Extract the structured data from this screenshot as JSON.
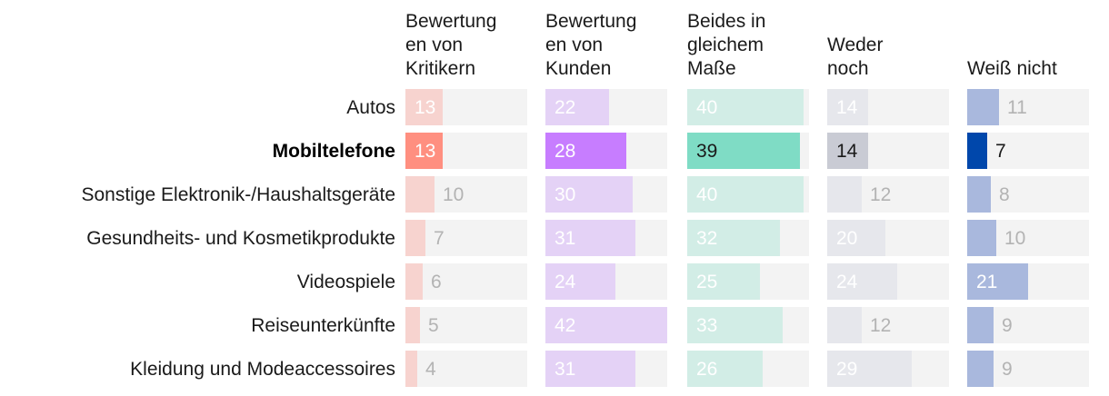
{
  "chart_data": {
    "type": "bar",
    "columns": [
      {
        "name_lines": [
          "Bewertung",
          "en von",
          "Kritikern"
        ],
        "color": "#ff8f80",
        "muted_color": "#f7d3cf"
      },
      {
        "name_lines": [
          "Bewertung",
          "en von",
          "Kunden"
        ],
        "color": "#c77dff",
        "muted_color": "#e4d2f6"
      },
      {
        "name_lines": [
          "Beides in",
          "gleichem",
          "Maße"
        ],
        "color": "#7fdcc5",
        "muted_color": "#d2ede6"
      },
      {
        "name_lines": [
          "Weder",
          "noch"
        ],
        "color": "#c9cbd4",
        "muted_color": "#e6e7ec"
      },
      {
        "name_lines": [
          "Weiß nicht"
        ],
        "color": "#0047ab",
        "muted_color": "#a9b8dd"
      }
    ],
    "categories": [
      "Autos",
      "Mobiltelefone",
      "Sonstige Elektronik-/Haushaltsgeräte",
      "Gesundheits- und Kosmetikprodukte",
      "Videospiele",
      "Reiseunterkünfte",
      "Kleidung und Modeaccessoires"
    ],
    "highlight": "Mobiltelefone",
    "values": [
      [
        13,
        22,
        40,
        14,
        11
      ],
      [
        13,
        28,
        39,
        14,
        7
      ],
      [
        10,
        30,
        40,
        12,
        8
      ],
      [
        7,
        31,
        32,
        20,
        10
      ],
      [
        6,
        24,
        25,
        24,
        21
      ],
      [
        5,
        42,
        33,
        12,
        9
      ],
      [
        4,
        31,
        26,
        29,
        9
      ]
    ],
    "scale_max": 42,
    "track_color": "#f3f3f3"
  }
}
